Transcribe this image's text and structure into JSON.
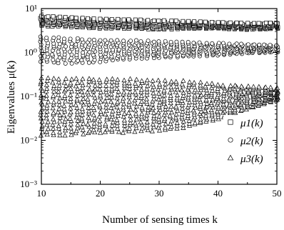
{
  "chart_data": {
    "type": "scatter",
    "title": "",
    "xlabel": "Number of sensing times k",
    "ylabel": "Eigenvalues μ(k)",
    "xlim": [
      10,
      50
    ],
    "ylim_log10": [
      -3,
      1
    ],
    "y_scale": "log",
    "x_ticks": [
      10,
      20,
      30,
      40,
      50
    ],
    "x_tick_labels": [
      "10",
      "20",
      "30",
      "40",
      "50"
    ],
    "y_ticks_log10": [
      -3,
      -2,
      -1,
      0,
      1
    ],
    "y_tick_labels": [
      "10⁻³",
      "10⁻²",
      "10⁻¹",
      "10⁰",
      "10¹"
    ],
    "grid": false,
    "legend_position": "right",
    "series": [
      {
        "name": "μ1(k)",
        "marker": "square",
        "x": [
          10,
          15,
          20,
          25,
          30,
          35,
          40,
          45,
          50
        ],
        "y_range": [
          [
            4.0,
            7.0
          ],
          [
            3.8,
            6.5
          ],
          [
            3.5,
            6.0
          ],
          [
            3.5,
            5.8
          ],
          [
            3.3,
            5.5
          ],
          [
            3.5,
            5.3
          ],
          [
            3.5,
            5.0
          ],
          [
            3.3,
            4.8
          ],
          [
            3.5,
            4.8
          ]
        ]
      },
      {
        "name": "μ2(k)",
        "marker": "circle",
        "x": [
          10,
          15,
          20,
          25,
          30,
          35,
          40,
          45,
          50
        ],
        "y_range": [
          [
            0.6,
            2.5
          ],
          [
            0.55,
            2.3
          ],
          [
            0.6,
            2.1
          ],
          [
            0.7,
            2.0
          ],
          [
            0.75,
            1.9
          ],
          [
            0.8,
            1.8
          ],
          [
            0.85,
            1.7
          ],
          [
            0.95,
            1.6
          ],
          [
            1.0,
            1.5
          ]
        ]
      },
      {
        "name": "μ3(k)",
        "marker": "triangle",
        "x": [
          10,
          15,
          20,
          25,
          30,
          35,
          40,
          45,
          50
        ],
        "y_range": [
          [
            0.012,
            0.3
          ],
          [
            0.013,
            0.28
          ],
          [
            0.014,
            0.28
          ],
          [
            0.015,
            0.27
          ],
          [
            0.016,
            0.25
          ],
          [
            0.02,
            0.24
          ],
          [
            0.03,
            0.2
          ],
          [
            0.05,
            0.18
          ],
          [
            0.08,
            0.16
          ]
        ]
      }
    ]
  }
}
